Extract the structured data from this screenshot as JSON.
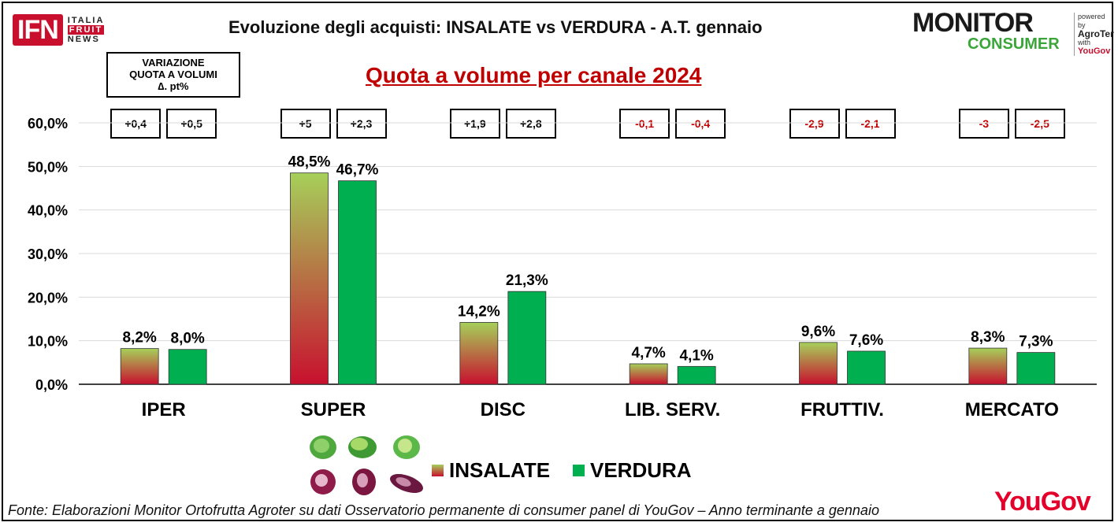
{
  "header": {
    "title": "Evoluzione degli acquisti: INSALATE vs VERDURA  - A.T. gennaio",
    "subtitle": "Quota a volume per canale 2024",
    "ifn_logo": "IFN",
    "ifn_side": [
      "ITALIA",
      "FRUIT",
      "NEWS"
    ],
    "monitor_line1": "MONITOR",
    "monitor_line2": "CONSUMER",
    "powered_by": "powered by",
    "agroter": "AgroTer",
    "with": "with",
    "agroter_yougov": "YouGov"
  },
  "variation_box": {
    "line1": "VARIAZIONE",
    "line2": "QUOTA A VOLUMI",
    "line3": "∆. pt%"
  },
  "deltas": {
    "insalate": [
      "+0,4",
      "+5",
      "+1,9",
      "-0,1",
      "-2,9",
      "-3"
    ],
    "verdura": [
      "+0,5",
      "+2,3",
      "+2,8",
      "-0,4",
      "-2,1",
      "-2,5"
    ]
  },
  "chart_data": {
    "type": "bar",
    "title": "Quota a volume per canale 2024",
    "categories": [
      "IPER",
      "SUPER",
      "DISC",
      "LIB. SERV.",
      "FRUTTIV.",
      "MERCATO"
    ],
    "series": [
      {
        "name": "INSALATE",
        "values": [
          8.2,
          48.5,
          14.2,
          4.7,
          9.6,
          8.3
        ],
        "labels": [
          "8,2%",
          "48,5%",
          "14,2%",
          "4,7%",
          "9,6%",
          "8,3%"
        ]
      },
      {
        "name": "VERDURA",
        "values": [
          8.0,
          46.7,
          21.3,
          4.1,
          7.6,
          7.3
        ],
        "labels": [
          "8,0%",
          "46,7%",
          "21,3%",
          "4,1%",
          "7,6%",
          "7,3%"
        ]
      }
    ],
    "ylim": [
      0,
      60
    ],
    "yticks": [
      0,
      10,
      20,
      30,
      40,
      50,
      60
    ],
    "ytick_labels": [
      "0,0%",
      "10,0%",
      "20,0%",
      "30,0%",
      "40,0%",
      "50,0%",
      "60,0%"
    ],
    "grid": true,
    "legend": "bottom-center"
  },
  "colors": {
    "insalate_top": "#a6d05a",
    "insalate_bottom": "#c8102e",
    "verdura": "#00b050",
    "negative_delta": "#c00000"
  },
  "legend": {
    "insalate": "INSALATE",
    "verdura": "VERDURA"
  },
  "footer": "Fonte: Elaborazioni Monitor Ortofrutta Agroter su dati Osservatorio permanente di consumer panel di YouGov  – Anno terminante a gennaio",
  "yougov_logo": "YouGov",
  "icons": [
    "lettuce-icon",
    "radicchio-icon"
  ]
}
